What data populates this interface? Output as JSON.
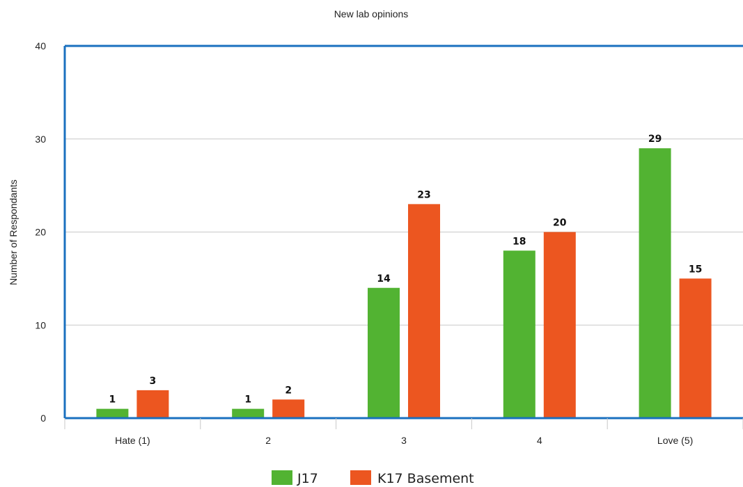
{
  "chart_data": {
    "type": "bar",
    "title": "New lab opinions",
    "xlabel": "",
    "ylabel": "Number of Respondants",
    "categories": [
      "Hate (1)",
      "2",
      "3",
      "4",
      "Love (5)"
    ],
    "series": [
      {
        "name": "J17",
        "values": [
          1,
          1,
          14,
          18,
          29
        ],
        "color": "#52b332"
      },
      {
        "name": "K17 Basement",
        "values": [
          3,
          2,
          23,
          20,
          15
        ],
        "color": "#ec5620"
      }
    ],
    "ylim": [
      0,
      40
    ],
    "yticks": [
      "0",
      "10",
      "20",
      "30",
      "40"
    ],
    "grid": true,
    "data_labels": true,
    "legend_position": "bottom",
    "frame_color": "#1a70bf"
  }
}
